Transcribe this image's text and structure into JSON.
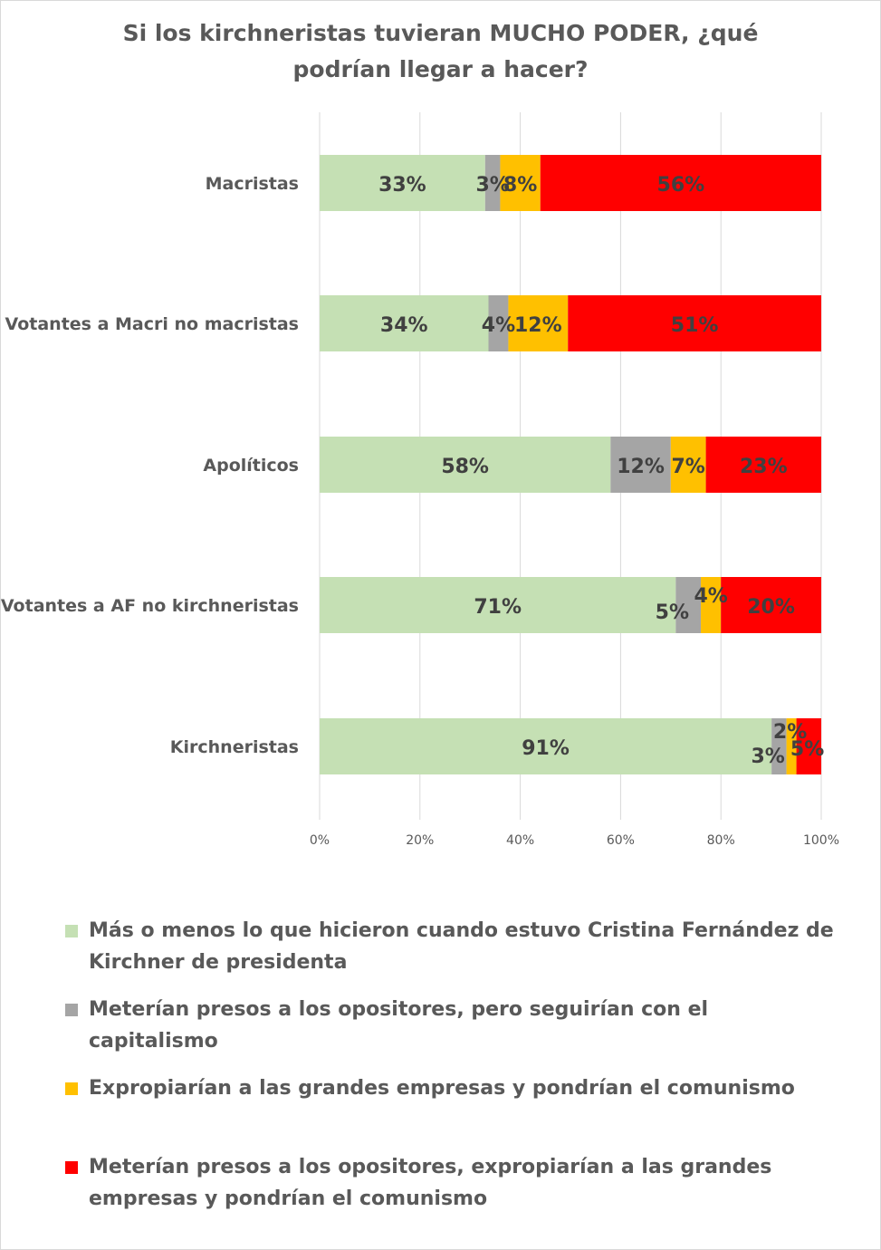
{
  "chart_data": {
    "type": "bar",
    "orientation": "horizontal",
    "stacked": "percent",
    "title": "Si los kirchneristas tuvieran MUCHO PODER, ¿qué podrían llegar a hacer?",
    "title_lines": [
      "Si los kirchneristas tuvieran MUCHO PODER, ¿qué",
      "podrían llegar a hacer?"
    ],
    "categories": [
      "Macristas",
      "Votantes a Macri no macristas",
      "Apolíticos",
      "Votantes a AF no kirchneristas",
      "Kirchneristas"
    ],
    "xlim": [
      0,
      100
    ],
    "x_ticks": [
      "0%",
      "20%",
      "40%",
      "60%",
      "80%",
      "100%"
    ],
    "grid": true,
    "legend_position": "bottom",
    "series": [
      {
        "name": "Más o menos lo que hicieron cuando estuvo Cristina Fernández de Kirchner de presidenta",
        "color": "#c5e0b4",
        "values": [
          33,
          34,
          58,
          71,
          91
        ],
        "labels": [
          "33%",
          "34%",
          "58%",
          "71%",
          "91%"
        ]
      },
      {
        "name": "Meterían presos a los opositores, pero seguirían con el capitalismo",
        "color": "#a5a5a5",
        "values": [
          3,
          4,
          12,
          5,
          3
        ],
        "labels": [
          "3%",
          "4%",
          "12%",
          "5%",
          "3%"
        ]
      },
      {
        "name": "Expropiarían a las grandes empresas y pondrían el comunismo",
        "color": "#ffc000",
        "values": [
          8,
          12,
          7,
          4,
          2
        ],
        "labels": [
          "8%",
          "12%",
          "7%",
          "4%",
          "2%"
        ]
      },
      {
        "name": "Meterían presos a los opositores, expropiarían a las grandes empresas y pondrían el comunismo",
        "color": "#ff0000",
        "values": [
          56,
          51,
          23,
          20,
          5
        ],
        "labels": [
          "56%",
          "51%",
          "23%",
          "20%",
          "5%"
        ]
      }
    ]
  }
}
